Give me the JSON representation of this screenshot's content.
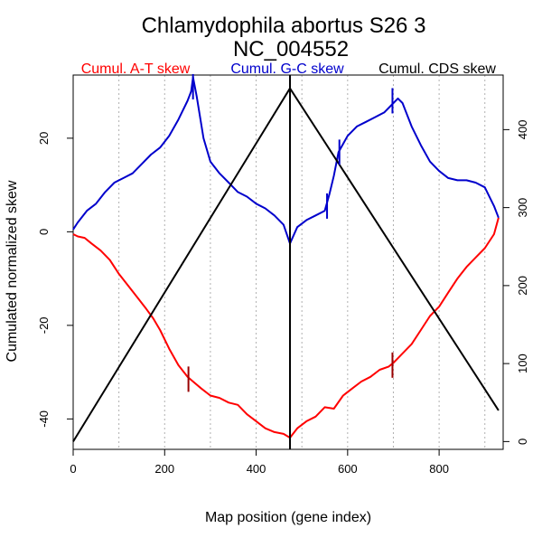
{
  "chart_data": {
    "type": "line",
    "title": "Chlamydophila abortus S26 3",
    "subtitle": "NC_004552",
    "xlabel": "Map position (gene index)",
    "ylabel": "Cumulated normalized skew",
    "xlim": [
      0,
      940
    ],
    "ylim": [
      -46.5,
      33.5
    ],
    "y2lim": [
      -10,
      470
    ],
    "x_ticks": [
      0,
      200,
      400,
      600,
      800
    ],
    "y_ticks": [
      -40,
      -20,
      0,
      20
    ],
    "y2_ticks": [
      0,
      100,
      200,
      300,
      400
    ],
    "grid_x": [
      0,
      100,
      200,
      300,
      400,
      500,
      600,
      700,
      800,
      900
    ],
    "grid": "vertical dotted",
    "legend_placement": "top",
    "vline_x": 474,
    "series": [
      {
        "name": "Cumul. A-T skew",
        "color": "#ff0000",
        "axis": "left",
        "x": [
          0,
          10,
          25,
          40,
          60,
          80,
          100,
          120,
          140,
          160,
          175,
          190,
          210,
          230,
          250,
          262,
          280,
          300,
          320,
          340,
          360,
          380,
          400,
          420,
          440,
          460,
          474,
          490,
          510,
          530,
          550,
          570,
          590,
          610,
          630,
          650,
          670,
          690,
          700,
          720,
          740,
          760,
          780,
          800,
          820,
          840,
          860,
          880,
          900,
          920,
          930
        ],
        "y": [
          -0.5,
          -1,
          -1.3,
          -2.5,
          -4,
          -6,
          -9,
          -11.5,
          -14,
          -16.5,
          -18.5,
          -21,
          -25,
          -28.5,
          -31,
          -32,
          -33.5,
          -35,
          -35.5,
          -36.5,
          -37,
          -39,
          -40.5,
          -42,
          -42.8,
          -43.2,
          -44,
          -42,
          -40.5,
          -39.5,
          -37.5,
          -37.8,
          -35,
          -33.5,
          -32,
          -31,
          -29.5,
          -28.8,
          -28,
          -26,
          -24,
          -21,
          -18,
          -16,
          -13,
          -10,
          -7.5,
          -5.5,
          -3.5,
          -0.5,
          3
        ]
      },
      {
        "name": "Cumul. G-C skew",
        "color": "#0000cc",
        "axis": "left",
        "x": [
          0,
          10,
          30,
          50,
          70,
          90,
          110,
          130,
          150,
          170,
          190,
          210,
          230,
          250,
          258,
          262,
          270,
          285,
          300,
          320,
          340,
          360,
          380,
          400,
          420,
          440,
          460,
          474,
          490,
          510,
          530,
          550,
          560,
          570,
          580,
          600,
          620,
          640,
          660,
          680,
          700,
          710,
          720,
          740,
          760,
          780,
          800,
          820,
          840,
          860,
          880,
          900,
          920,
          930
        ],
        "y": [
          0.5,
          2,
          4.5,
          6,
          8.5,
          10.5,
          11.5,
          12.5,
          14.5,
          16.5,
          18,
          20.5,
          24,
          28,
          30,
          33,
          29,
          20,
          15,
          12.5,
          10.5,
          8.5,
          7.5,
          6,
          5,
          3.5,
          1.5,
          -2.5,
          1,
          2.5,
          3.5,
          4.5,
          8,
          12,
          17,
          20.5,
          22.5,
          23.5,
          24.5,
          25.5,
          27.5,
          28.5,
          27.5,
          22.5,
          18.5,
          15,
          13,
          11.5,
          11,
          11,
          10.5,
          9.5,
          5.5,
          3
        ]
      },
      {
        "name": "Cumul. CDS skew",
        "color": "#000000",
        "axis": "right",
        "x": [
          0,
          474,
          930
        ],
        "y": [
          0,
          453,
          40
        ]
      }
    ],
    "markers": [
      {
        "series": "Cumul. A-T skew",
        "x": 252,
        "y": -31.5,
        "color": "#990000"
      },
      {
        "series": "Cumul. A-T skew",
        "x": 698,
        "y": -28.5,
        "color": "#990000"
      },
      {
        "series": "Cumul. G-C skew",
        "x": 262,
        "y": 31,
        "color": "#0000cc"
      },
      {
        "series": "Cumul. G-C skew",
        "x": 555,
        "y": 5.5,
        "color": "#0000cc"
      },
      {
        "series": "Cumul. G-C skew",
        "x": 582,
        "y": 17,
        "color": "#0000cc"
      },
      {
        "series": "Cumul. G-C skew",
        "x": 698,
        "y": 28,
        "color": "#0000cc"
      }
    ]
  }
}
